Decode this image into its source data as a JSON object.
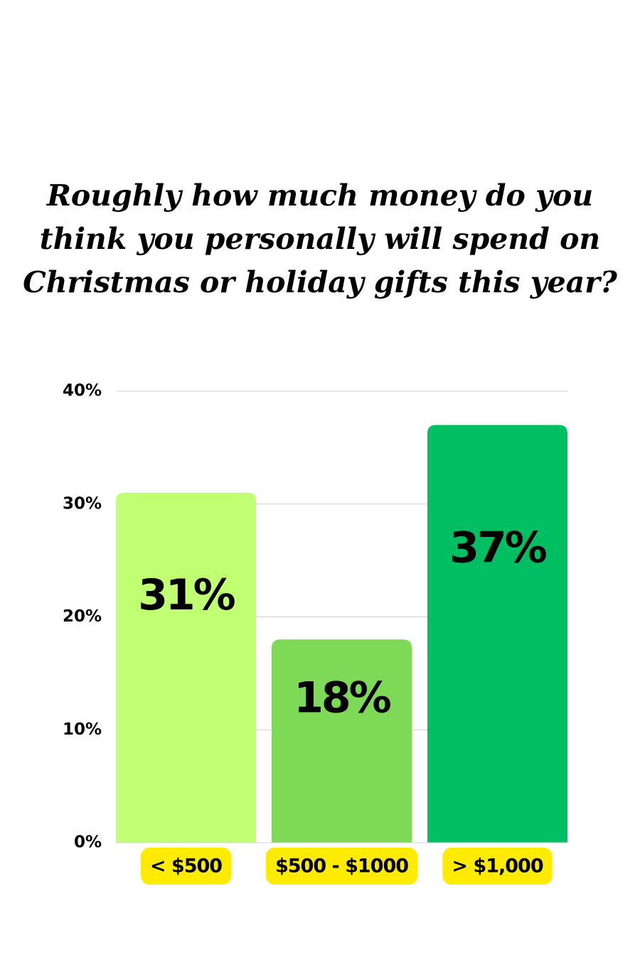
{
  "chart_data": {
    "type": "bar",
    "title": "Roughly how much money do you think you personally will spend on Christmas or holiday gifts this year?",
    "categories": [
      "< $500",
      "$500 - $1000",
      "> $1,000"
    ],
    "values": [
      31,
      18,
      37
    ],
    "value_labels": [
      "31%",
      "18%",
      "37%"
    ],
    "colors": [
      "#c1ff72",
      "#7ed957",
      "#00bf63"
    ],
    "category_label_color": "#ffeb00",
    "ylim": [
      0,
      40
    ],
    "yticks": [
      {
        "value": 0,
        "label": "0%"
      },
      {
        "value": 10,
        "label": "10%"
      },
      {
        "value": 20,
        "label": "20%"
      },
      {
        "value": 30,
        "label": "30%"
      },
      {
        "value": 40,
        "label": "40%"
      }
    ],
    "grid": true
  }
}
